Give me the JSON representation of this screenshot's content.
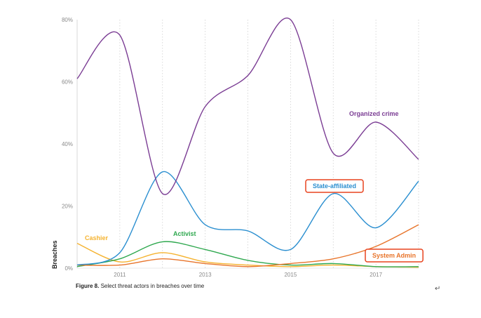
{
  "chart_data": {
    "type": "line",
    "title": "",
    "ylabel": "Breaches",
    "xlabel": "",
    "xlim": [
      2010,
      2018
    ],
    "ylim": [
      0,
      80
    ],
    "x_ticks": [
      "2011",
      "2013",
      "2015",
      "2017"
    ],
    "y_ticks": [
      "0%",
      "20%",
      "40%",
      "60%",
      "80%"
    ],
    "grid": "vertical dotted",
    "series": [
      {
        "name": "Organized crime",
        "color": "#7b3d94",
        "x": [
          2010,
          2011,
          2012,
          2013,
          2014,
          2015,
          2016,
          2017,
          2018
        ],
        "values": [
          61,
          75,
          24,
          52,
          62,
          80,
          37,
          47,
          35
        ]
      },
      {
        "name": "State-affiliated",
        "color": "#2b8fd0",
        "x": [
          2010,
          2011,
          2012,
          2013,
          2014,
          2015,
          2016,
          2017,
          2018
        ],
        "values": [
          1,
          5,
          31,
          14,
          12,
          6,
          24,
          13,
          28
        ]
      },
      {
        "name": "System Admin",
        "color": "#e8742a",
        "x": [
          2010,
          2011,
          2012,
          2013,
          2014,
          2015,
          2016,
          2017,
          2018
        ],
        "values": [
          1,
          1,
          3,
          1.5,
          0.5,
          1.5,
          3,
          7,
          14
        ]
      },
      {
        "name": "Activist",
        "color": "#2fa84f",
        "x": [
          2010,
          2011,
          2012,
          2013,
          2014,
          2015,
          2016,
          2017,
          2018
        ],
        "values": [
          0.5,
          3,
          8.5,
          6,
          2.5,
          1,
          1.5,
          0.5,
          0.5
        ]
      },
      {
        "name": "Cashier",
        "color": "#f5b330",
        "x": [
          2010,
          2011,
          2012,
          2013,
          2014,
          2015,
          2016,
          2017,
          2018
        ],
        "values": [
          8,
          2,
          5,
          2,
          1,
          0.5,
          1,
          0.5,
          0.3
        ]
      }
    ],
    "caption_bold": "Figure 8.",
    "caption_text": " Select threat actors in breaches over time",
    "return_symbol": "↵"
  }
}
